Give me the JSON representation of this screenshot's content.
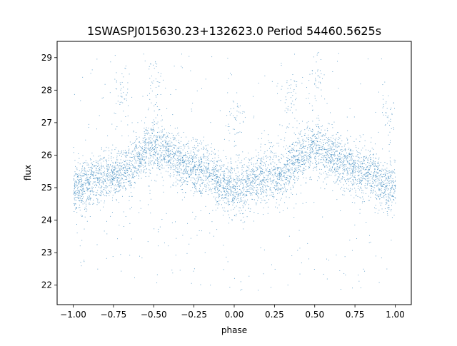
{
  "chart_data": {
    "type": "scatter",
    "title": "1SWASPJ015630.23+132623.0 Period 54460.5625s",
    "xlabel": "phase",
    "ylabel": "flux",
    "xlim": [
      -1.1,
      1.1
    ],
    "ylim": [
      21.4,
      29.5
    ],
    "xticks": [
      -1.0,
      -0.75,
      -0.5,
      -0.25,
      0.0,
      0.25,
      0.5,
      0.75,
      1.0
    ],
    "xtick_labels": [
      "−1.00",
      "−0.75",
      "−0.50",
      "−0.25",
      "0.00",
      "0.25",
      "0.50",
      "0.75",
      "1.00"
    ],
    "yticks": [
      22,
      23,
      24,
      25,
      26,
      27,
      28,
      29
    ],
    "ytick_labels": [
      "22",
      "23",
      "24",
      "25",
      "26",
      "27",
      "28",
      "29"
    ],
    "grid": false,
    "legend": "none",
    "color": "#1f77b4",
    "series": [
      {
        "description_of_trend": "sinusoid repeated over two cycles",
        "trend": {
          "x": [
            -1.0,
            -0.75,
            -0.5,
            -0.25,
            0.0,
            0.25,
            0.5,
            0.75,
            1.0
          ],
          "y": [
            25.0,
            25.4,
            26.2,
            25.6,
            25.0,
            25.4,
            26.2,
            25.6,
            25.0
          ]
        },
        "scatter_sigma": 0.4,
        "outlier_clumps": [
          {
            "x": -0.7,
            "y": 27.8
          },
          {
            "x": -0.5,
            "y": 28.2
          },
          {
            "x": 0.0,
            "y": 27.0
          },
          {
            "x": 0.35,
            "y": 27.8
          },
          {
            "x": 0.5,
            "y": 28.2
          },
          {
            "x": 0.95,
            "y": 27.0
          }
        ]
      }
    ]
  }
}
